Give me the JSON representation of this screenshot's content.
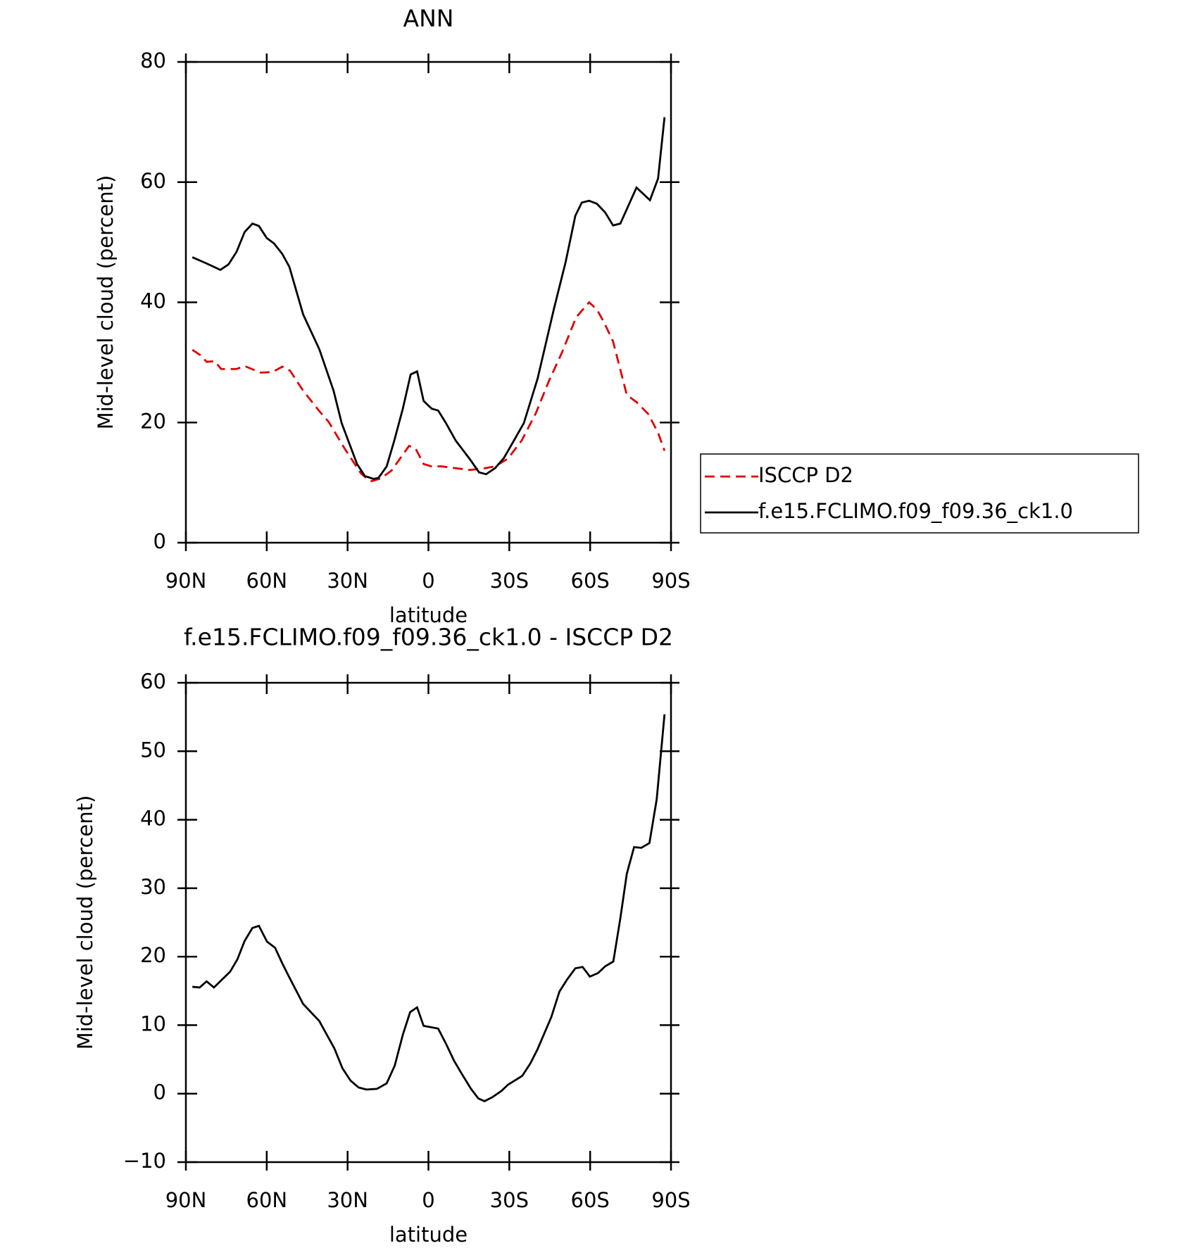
{
  "chart_data": [
    {
      "type": "line",
      "title": "ANN",
      "xlabel": "latitude",
      "ylabel": "Mid-level cloud (percent)",
      "xlim": [
        90,
        -90
      ],
      "ylim": [
        0,
        80
      ],
      "xticks": [
        {
          "value": 90,
          "label": "90N"
        },
        {
          "value": 60,
          "label": "60N"
        },
        {
          "value": 30,
          "label": "30N"
        },
        0,
        {
          "value": -30,
          "label": "30S"
        },
        {
          "value": -60,
          "label": "60S"
        },
        {
          "value": -90,
          "label": "90S"
        }
      ],
      "yticks": [
        0,
        20,
        40,
        60,
        80
      ],
      "legend": "right",
      "series": [
        {
          "name": "ISCCP D2",
          "color": "#e00000",
          "style": "dashed",
          "x": [
            87.6,
            84.6,
            82.3,
            79.3,
            76.9,
            71.2,
            68.2,
            62.3,
            57.8,
            54.2,
            51.3,
            46.5,
            40.5,
            37,
            31,
            25,
            21.5,
            17.6,
            13.7,
            7.2,
            4.8,
            1.8,
            -1.2,
            -4.8,
            -10.1,
            -15.2,
            -19.7,
            -24.7,
            -29.5,
            -34.6,
            -39.9,
            -44.7,
            -49.5,
            -54.8,
            -59.6,
            -62.5,
            -65,
            -68.5,
            -73.6,
            -77.2,
            -81.6,
            -85.2,
            -87.6
          ],
          "values": [
            32.1,
            31.2,
            30.1,
            30.2,
            28.9,
            28.9,
            29.4,
            28.3,
            28.4,
            29.3,
            28.6,
            25.3,
            21.9,
            20.1,
            15.6,
            11.5,
            10.2,
            10.7,
            12.0,
            16.1,
            15.7,
            13.1,
            12.7,
            12.7,
            12.4,
            12.1,
            12.3,
            12.7,
            14,
            17,
            21.6,
            26.9,
            31.6,
            37.5,
            40.0,
            38.8,
            36.8,
            33.5,
            24.6,
            23.4,
            21.4,
            18.3,
            15.3
          ]
        },
        {
          "name": "f.e15.FCLIMO.f09_f09.36_ck1.0",
          "color": "#000000",
          "style": "solid",
          "x": [
            87.6,
            82.5,
            77.2,
            74.2,
            71.2,
            68.2,
            65.3,
            62.9,
            60,
            57.3,
            54.3,
            51.6,
            46.5,
            40.5,
            35.2,
            32.2,
            26.5,
            23.6,
            20.3,
            18.5,
            15.5,
            12.8,
            9.5,
            6.6,
            4.2,
            1.8,
            -1.2,
            -3.6,
            -6.5,
            -10.1,
            -15.2,
            -18.8,
            -21.4,
            -24.7,
            -28,
            -31.6,
            -35.4,
            -40.5,
            -46.5,
            -50.9,
            -54.5,
            -56.9,
            -59.6,
            -62.5,
            -65.5,
            -68.5,
            -71.2,
            -77.2,
            -82.2,
            -85.2,
            -87.6
          ],
          "values": [
            47.5,
            46.5,
            45.4,
            46.3,
            48.4,
            51.7,
            53.1,
            52.7,
            50.7,
            49.8,
            48.1,
            45.9,
            38,
            32.2,
            25.3,
            19.9,
            13.1,
            11.1,
            10.6,
            10.8,
            12.7,
            16.8,
            22.3,
            28,
            28.5,
            23.6,
            22.3,
            22,
            19.9,
            17,
            14,
            11.7,
            11.4,
            12.4,
            14.1,
            16.9,
            19.9,
            27.3,
            38.8,
            46.7,
            54.4,
            56.6,
            56.9,
            56.4,
            55.0,
            52.8,
            53.1,
            59.1,
            57.0,
            60.6,
            70.8
          ]
        }
      ]
    },
    {
      "type": "line",
      "title": "f.e15.FCLIMO.f09_f09.36_ck1.0 - ISCCP D2",
      "xlabel": "latitude",
      "ylabel": "Mid-level cloud (percent)",
      "xlim": [
        90,
        -90
      ],
      "ylim": [
        -10,
        60
      ],
      "xticks": [
        {
          "value": 90,
          "label": "90N"
        },
        {
          "value": 60,
          "label": "60N"
        },
        {
          "value": 30,
          "label": "30N"
        },
        0,
        {
          "value": -30,
          "label": "30S"
        },
        {
          "value": -60,
          "label": "60S"
        },
        {
          "value": -90,
          "label": "90S"
        }
      ],
      "yticks": [
        {
          "value": -10,
          "label": "−10"
        },
        0,
        10,
        20,
        30,
        40,
        50,
        60
      ],
      "series": [
        {
          "color": "#000000",
          "style": "solid",
          "x": [
            87.6,
            84.9,
            82.3,
            79.6,
            73.6,
            70.9,
            68.2,
            65.3,
            62.9,
            59.9,
            56.9,
            54.2,
            51.9,
            46.5,
            40.5,
            34.9,
            31.9,
            28.9,
            25.9,
            23.0,
            19.1,
            15.5,
            12.5,
            9.5,
            6.8,
            4.2,
            1.8,
            -3.6,
            -6.5,
            -9.5,
            -12.5,
            -15.8,
            -18.5,
            -20.8,
            -23.8,
            -27.1,
            -29.5,
            -34.8,
            -37.8,
            -40.5,
            -45.6,
            -48.6,
            -51.5,
            -54.5,
            -57.2,
            -59.9,
            -62.9,
            -65.6,
            -68.6,
            -71.2,
            -73.6,
            -76.3,
            -79.0,
            -82.0,
            -84.7,
            -87.6
          ],
          "values": [
            15.6,
            15.5,
            16.4,
            15.5,
            17.8,
            19.6,
            22.3,
            24.2,
            24.5,
            22.2,
            21.3,
            19.0,
            17.2,
            13.1,
            10.6,
            6.6,
            3.7,
            1.9,
            0.9,
            0.6,
            0.7,
            1.5,
            4.1,
            8.6,
            11.9,
            12.6,
            9.9,
            9.5,
            7.3,
            4.8,
            2.8,
            0.7,
            -0.7,
            -1.1,
            -0.5,
            0.4,
            1.3,
            2.6,
            4.4,
            6.5,
            11.2,
            14.9,
            16.7,
            18.3,
            18.5,
            17.1,
            17.6,
            18.6,
            19.3,
            25.6,
            32.1,
            36.0,
            35.9,
            36.6,
            43.0,
            55.4
          ]
        }
      ]
    }
  ]
}
